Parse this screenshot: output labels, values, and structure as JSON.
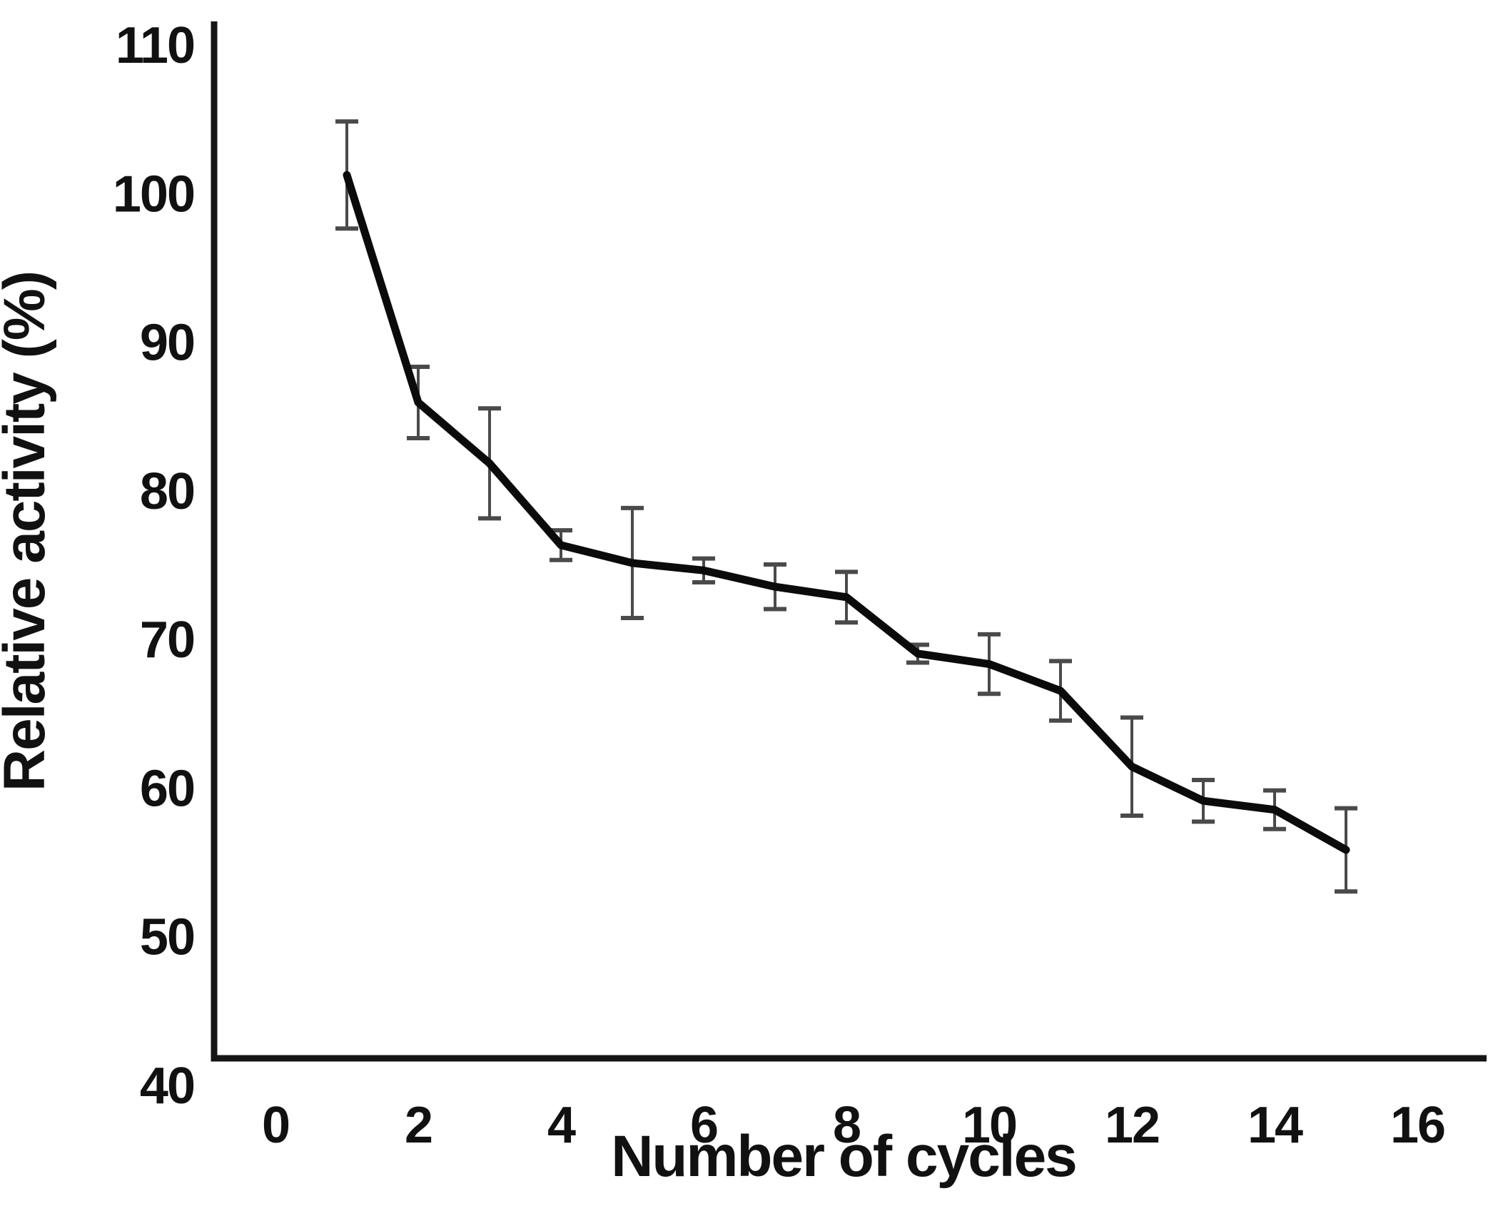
{
  "chart_data": {
    "type": "line",
    "title": "",
    "xlabel": "Number of cycles",
    "ylabel": "Relative activity (%)",
    "x_ticks": [
      0,
      2,
      4,
      6,
      8,
      10,
      12,
      14,
      16
    ],
    "y_ticks": [
      40,
      50,
      60,
      70,
      80,
      90,
      100,
      110
    ],
    "xlim": [
      0,
      16.5
    ],
    "ylim": [
      40,
      110
    ],
    "grid": false,
    "legend": "none",
    "markers": "none",
    "series": [
      {
        "name": "Relative activity",
        "x": [
          1,
          2,
          3,
          4,
          5,
          6,
          7,
          8,
          9,
          10,
          11,
          12,
          13,
          14,
          15
        ],
        "values": [
          101.2,
          85.9,
          81.8,
          76.3,
          75.1,
          74.6,
          73.5,
          72.8,
          69.0,
          68.3,
          66.5,
          61.4,
          59.1,
          58.5,
          55.8
        ],
        "error_bars": [
          3.6,
          2.4,
          3.7,
          1.0,
          3.7,
          0.8,
          1.5,
          1.7,
          0.6,
          2.0,
          2.0,
          3.3,
          1.4,
          1.3,
          2.8
        ]
      }
    ]
  },
  "colors": {
    "background": "#ffffff",
    "axis_line": "#151515",
    "series_line": "#0b0b0b",
    "error_bar": "#4a4a4a",
    "text": "#111111"
  }
}
